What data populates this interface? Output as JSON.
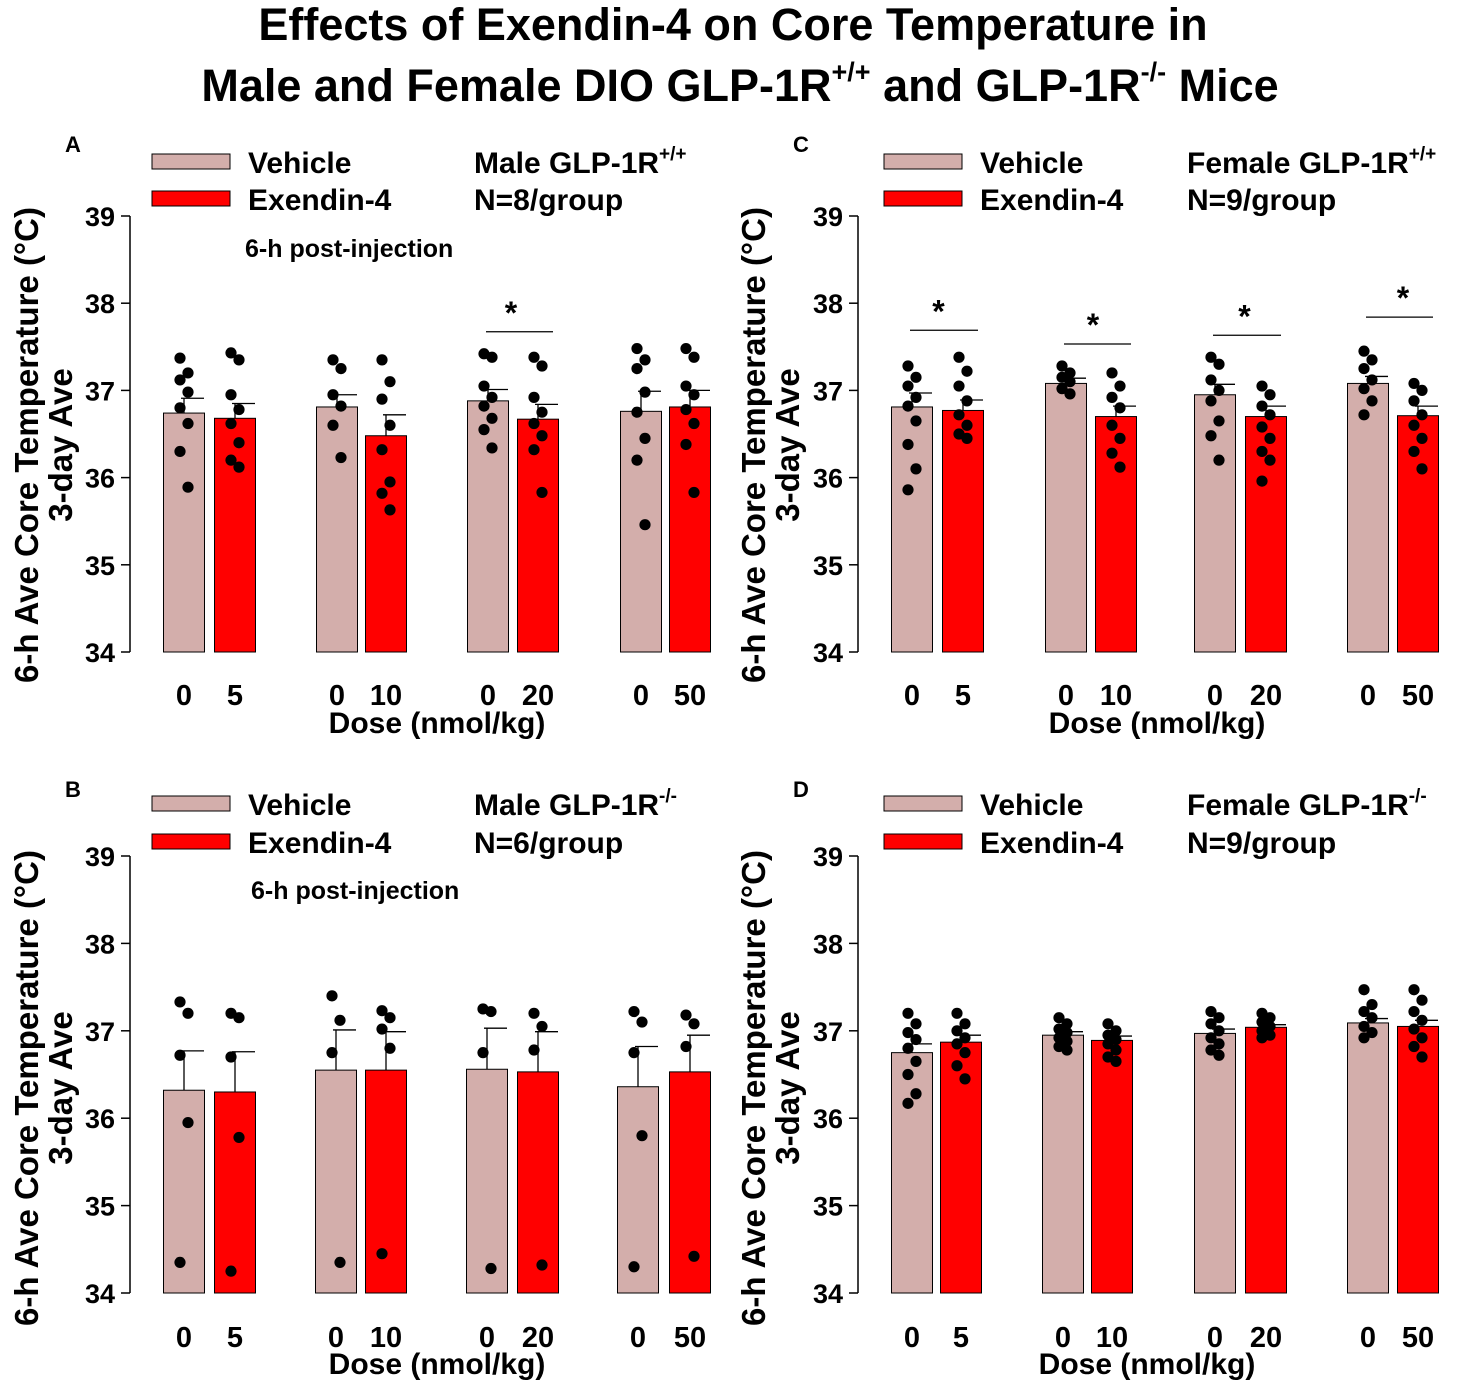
{
  "figure": {
    "title_line1": "Effects of Exendin-4 on Core Temperature in",
    "title_line2_a": "Male and Female DIO GLP-1R",
    "title_line2_sup1": "+/+",
    "title_line2_b": " and GLP-1R",
    "title_line2_sup2": "-/-",
    "title_line2_c": " Mice"
  },
  "colors": {
    "vehicle": "#d3aeab",
    "exendin": "#ff0000",
    "axis": "#000000",
    "point": "#000000"
  },
  "legend": {
    "vehicle": "Vehicle",
    "exendin": "Exendin-4"
  },
  "chart_data": [
    {
      "panel": "A",
      "type": "bar",
      "group_label_main": "Male GLP-1R",
      "group_label_sup": "+/+",
      "n_label": "N=8/group",
      "note": "6-h post-injection",
      "ylabel_line1": "6-h Ave Core Temperature (°C)",
      "ylabel_line2": "3-day Ave",
      "xlabel": "Dose (nmol/kg)",
      "ylim": [
        34,
        39
      ],
      "yticks": [
        "34",
        "35",
        "36",
        "37",
        "38",
        "39"
      ],
      "dose_labels": [
        [
          "0",
          "5"
        ],
        [
          "0",
          "10"
        ],
        [
          "0",
          "20"
        ],
        [
          "0",
          "50"
        ]
      ],
      "vehicle": {
        "name": "Vehicle",
        "values": [
          36.74,
          36.81,
          36.88,
          36.76
        ],
        "sem": [
          0.17,
          0.14,
          0.13,
          0.23
        ]
      },
      "exendin": {
        "name": "Exendin-4",
        "values": [
          36.68,
          36.48,
          36.67,
          36.81
        ],
        "sem": [
          0.17,
          0.24,
          0.17,
          0.19
        ]
      },
      "vehicle_points": [
        [
          37.37,
          37.2,
          37.12,
          36.98,
          36.8,
          36.62,
          36.3,
          35.89
        ],
        [
          37.35,
          37.25,
          36.95,
          36.82,
          36.6,
          36.23
        ],
        [
          37.42,
          37.38,
          37.05,
          36.92,
          36.82,
          36.68,
          36.55,
          36.34
        ],
        [
          37.48,
          37.35,
          37.25,
          36.98,
          36.75,
          36.45,
          36.2,
          35.46
        ]
      ],
      "exendin_points": [
        [
          37.43,
          37.35,
          36.95,
          36.78,
          36.62,
          36.4,
          36.2,
          36.12
        ],
        [
          37.35,
          37.1,
          36.9,
          36.6,
          36.32,
          35.95,
          35.82,
          35.63
        ],
        [
          37.38,
          37.28,
          36.92,
          36.75,
          36.62,
          36.48,
          36.32,
          35.83
        ],
        [
          37.48,
          37.38,
          37.05,
          36.95,
          36.78,
          36.62,
          36.38,
          35.83
        ]
      ],
      "significance": [
        2
      ]
    },
    {
      "panel": "B",
      "type": "bar",
      "group_label_main": "Male GLP-1R",
      "group_label_sup": "-/-",
      "n_label": "N=6/group",
      "note": "6-h post-injection",
      "ylabel_line1": "6-h Ave Core Temperature (°C)",
      "ylabel_line2": "3-day Ave",
      "xlabel": "Dose (nmol/kg)",
      "ylim": [
        34,
        39
      ],
      "yticks": [
        "34",
        "35",
        "36",
        "37",
        "38",
        "39"
      ],
      "dose_labels": [
        [
          "0",
          "5"
        ],
        [
          "0",
          "10"
        ],
        [
          "0",
          "20"
        ],
        [
          "0",
          "50"
        ]
      ],
      "vehicle": {
        "name": "Vehicle",
        "values": [
          36.32,
          36.55,
          36.56,
          36.36
        ],
        "sem": [
          0.45,
          0.46,
          0.47,
          0.46
        ]
      },
      "exendin": {
        "name": "Exendin-4",
        "values": [
          36.3,
          36.55,
          36.53,
          36.53
        ],
        "sem": [
          0.46,
          0.44,
          0.46,
          0.42
        ]
      },
      "vehicle_points": [
        [
          37.33,
          37.2,
          36.72,
          35.95,
          34.35
        ],
        [
          37.4,
          37.12,
          36.75,
          34.35
        ],
        [
          37.25,
          37.22,
          36.75,
          34.28
        ],
        [
          37.22,
          37.1,
          36.75,
          35.8,
          34.3
        ]
      ],
      "exendin_points": [
        [
          37.2,
          37.15,
          36.7,
          35.78,
          34.25
        ],
        [
          37.23,
          37.15,
          37.02,
          36.8,
          34.45
        ],
        [
          37.2,
          37.05,
          36.78,
          34.32
        ],
        [
          37.18,
          37.08,
          36.82,
          34.42
        ]
      ],
      "significance": []
    },
    {
      "panel": "C",
      "type": "bar",
      "group_label_main": "Female GLP-1R",
      "group_label_sup": "+/+",
      "n_label": "N=9/group",
      "note": "",
      "ylabel_line1": "6-h Ave Core Temperature (°C)",
      "ylabel_line2": "3-day Ave",
      "xlabel": "Dose (nmol/kg)",
      "ylim": [
        34,
        39
      ],
      "yticks": [
        "34",
        "35",
        "36",
        "37",
        "38",
        "39"
      ],
      "dose_labels": [
        [
          "0",
          "5"
        ],
        [
          "0",
          "10"
        ],
        [
          "0",
          "20"
        ],
        [
          "0",
          "50"
        ]
      ],
      "vehicle": {
        "name": "Vehicle",
        "values": [
          36.81,
          37.08,
          36.95,
          37.08
        ],
        "sem": [
          0.16,
          0.06,
          0.12,
          0.08
        ]
      },
      "exendin": {
        "name": "Exendin-4",
        "values": [
          36.77,
          36.7,
          36.7,
          36.71
        ],
        "sem": [
          0.12,
          0.12,
          0.12,
          0.11
        ]
      },
      "vehicle_points": [
        [
          37.28,
          37.15,
          37.05,
          36.92,
          36.82,
          36.65,
          36.38,
          36.1,
          35.86
        ],
        [
          37.28,
          37.2,
          37.15,
          37.1,
          37.02,
          36.96
        ],
        [
          37.38,
          37.3,
          37.12,
          37.0,
          36.88,
          36.65,
          36.48,
          36.2
        ],
        [
          37.45,
          37.35,
          37.25,
          37.12,
          37.02,
          36.88,
          36.72
        ]
      ],
      "exendin_points": [
        [
          37.38,
          37.22,
          37.05,
          36.88,
          36.72,
          36.6,
          36.5,
          36.45
        ],
        [
          37.2,
          37.05,
          36.92,
          36.8,
          36.6,
          36.45,
          36.28,
          36.12
        ],
        [
          37.05,
          36.95,
          36.82,
          36.72,
          36.58,
          36.45,
          36.3,
          36.2,
          35.96
        ],
        [
          37.08,
          37.0,
          36.88,
          36.72,
          36.6,
          36.45,
          36.3,
          36.1
        ]
      ],
      "significance": [
        0,
        1,
        2,
        3
      ]
    },
    {
      "panel": "D",
      "type": "bar",
      "group_label_main": "Female GLP-1R",
      "group_label_sup": "-/-",
      "n_label": "N=9/group",
      "note": "",
      "ylabel_line1": "6-h Ave Core Temperature (°C)",
      "ylabel_line2": "3-day Ave",
      "xlabel": "Dose (nmol/kg)",
      "ylim": [
        34,
        39
      ],
      "yticks": [
        "34",
        "35",
        "36",
        "37",
        "38",
        "39"
      ],
      "dose_labels": [
        [
          "0",
          "5"
        ],
        [
          "0",
          "10"
        ],
        [
          "0",
          "20"
        ],
        [
          "0",
          "50"
        ]
      ],
      "vehicle": {
        "name": "Vehicle",
        "values": [
          36.75,
          36.95,
          36.97,
          37.09
        ],
        "sem": [
          0.1,
          0.04,
          0.05,
          0.05
        ]
      },
      "exendin": {
        "name": "Exendin-4",
        "values": [
          36.87,
          36.89,
          37.04,
          37.05
        ],
        "sem": [
          0.08,
          0.05,
          0.03,
          0.07
        ]
      },
      "vehicle_points": [
        [
          37.2,
          37.08,
          36.98,
          36.9,
          36.8,
          36.65,
          36.5,
          36.28,
          36.17
        ],
        [
          37.15,
          37.08,
          37.02,
          36.98,
          36.92,
          36.88,
          36.82,
          36.78
        ],
        [
          37.22,
          37.15,
          37.08,
          37.0,
          36.92,
          36.85,
          36.78,
          36.72
        ],
        [
          37.47,
          37.3,
          37.22,
          37.15,
          37.05,
          36.98,
          36.92
        ]
      ],
      "exendin_points": [
        [
          37.2,
          37.08,
          37.0,
          36.92,
          36.85,
          36.75,
          36.6,
          36.45
        ],
        [
          37.08,
          37.0,
          36.95,
          36.9,
          36.85,
          36.78,
          36.7,
          36.65
        ],
        [
          37.2,
          37.15,
          37.1,
          37.05,
          37.0,
          36.95,
          36.92
        ],
        [
          37.47,
          37.35,
          37.22,
          37.12,
          37.02,
          36.92,
          36.82,
          36.7
        ]
      ],
      "significance": []
    }
  ]
}
